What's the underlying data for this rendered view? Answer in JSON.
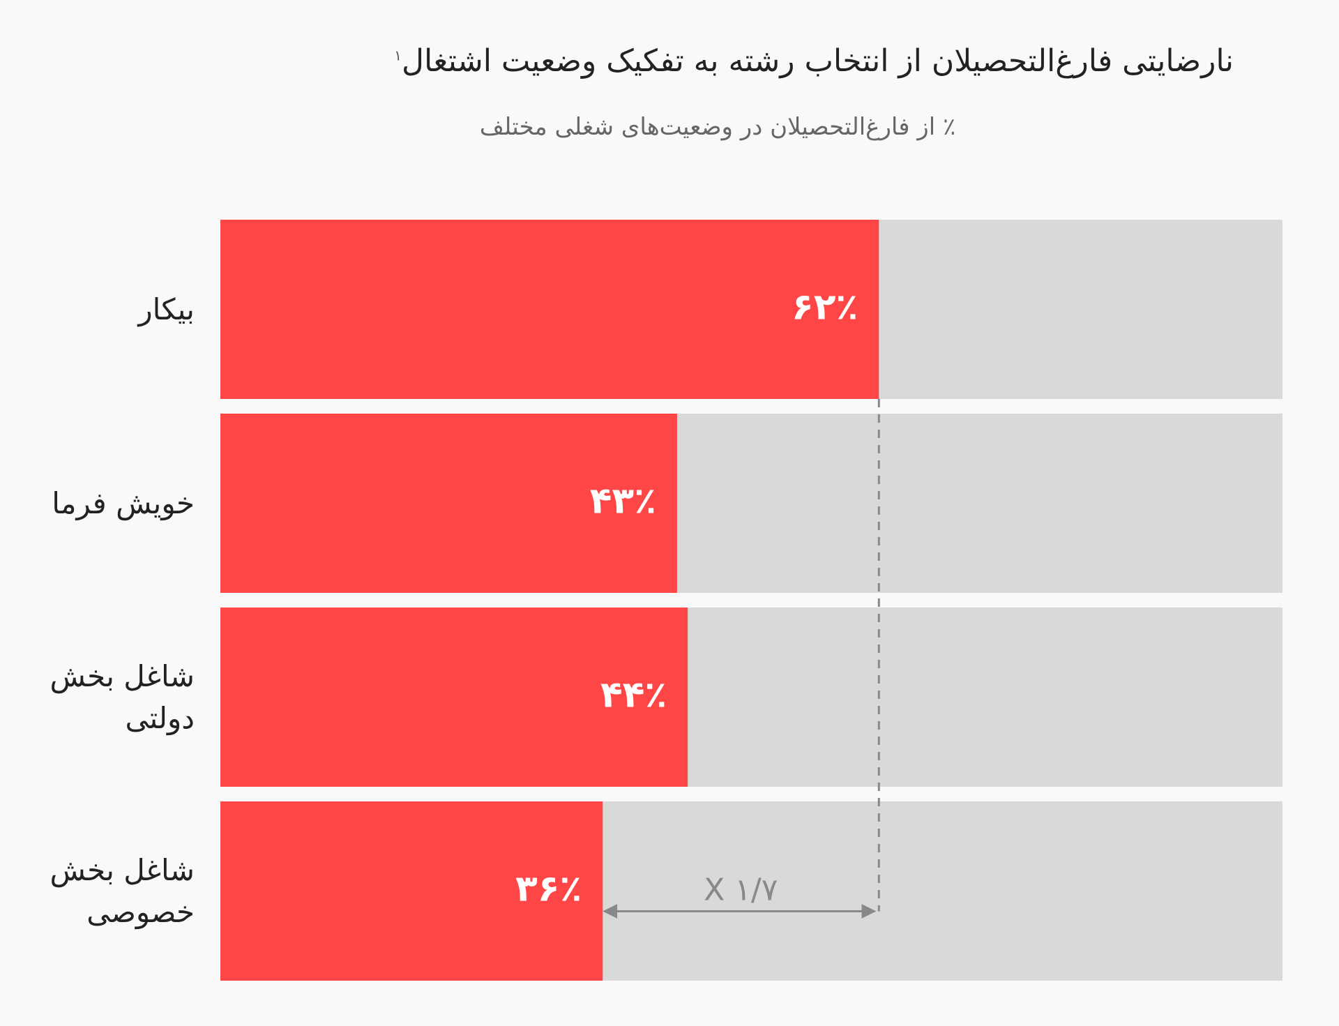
{
  "chart_data": {
    "type": "bar",
    "orientation": "horizontal",
    "title": "نارضایتی فارغ‌التحصیلان از انتخاب رشته به تفکیک وضعیت اشتغال",
    "title_footnote": "۱",
    "subtitle": "٪ از فارغ‌التحصیلان در وضعیت‌های شغلی مختلف",
    "categories": [
      "بیکار",
      "خویش فرما",
      "شاغل بخش دولتی",
      "شاغل بخش خصوصی"
    ],
    "values": [
      62,
      43,
      44,
      36
    ],
    "value_labels": [
      "۶۲٪",
      "۴۳٪",
      "۴۴٪",
      "۳۶٪"
    ],
    "color": "#ff4646",
    "track_color": "#d9d9d9",
    "xlim": [
      0,
      100
    ],
    "annotation": "X ۱/۷"
  }
}
